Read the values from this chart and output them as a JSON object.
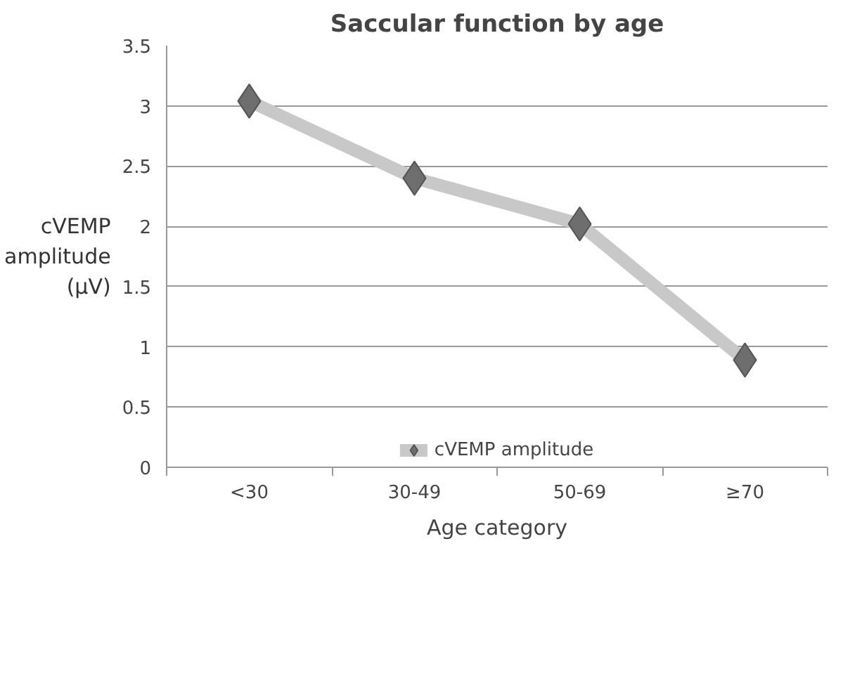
{
  "chart_data": {
    "type": "line",
    "title": "Saccular function by age",
    "xlabel": "Age category",
    "ylabel": "cVEMP amplitude (µV)",
    "categories": [
      "<30",
      "30-49",
      "50-69",
      "≥70"
    ],
    "series": [
      {
        "name": "cVEMP amplitude",
        "color": "#c8c8c8",
        "values": [
          3.04,
          2.4,
          2.02,
          0.89
        ]
      }
    ],
    "ylim": [
      0,
      3.5
    ],
    "yticks": [
      0,
      0.5,
      1,
      1.5,
      2,
      2.5,
      3,
      3.5
    ],
    "grid": "y",
    "legend": "bottom",
    "marker": "diamond",
    "line_style": "solid"
  }
}
